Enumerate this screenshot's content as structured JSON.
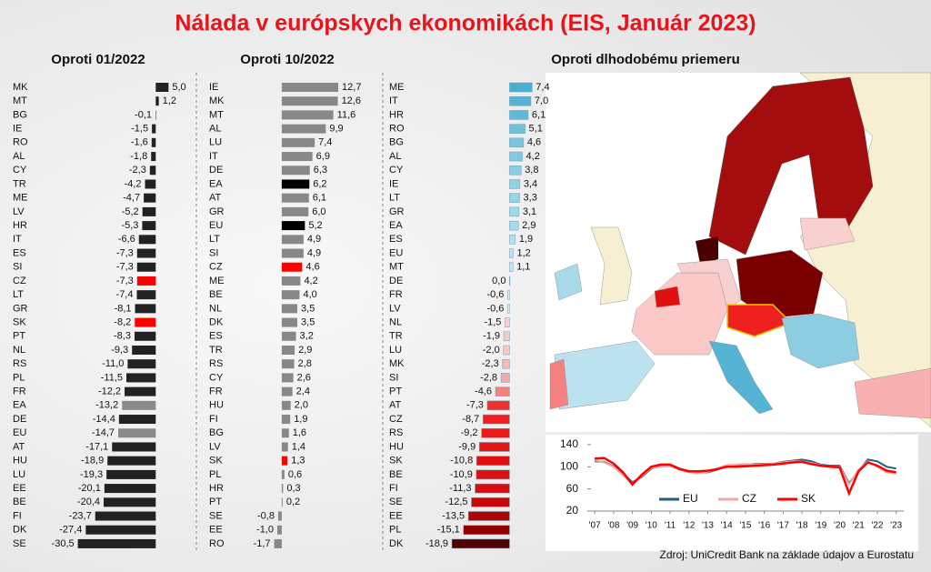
{
  "title": "Nálada v európskych ekonomikách (EIS, Január 2023)",
  "source": "Zdroj: UniCredit Bank na základe údajov a Eurostatu",
  "chart_data": [
    {
      "type": "barh",
      "title": "Oproti 01/2022",
      "xlim": [
        -35,
        12
      ],
      "categories": [
        "MK",
        "MT",
        "BG",
        "IE",
        "RO",
        "AL",
        "CY",
        "TR",
        "ME",
        "LV",
        "HR",
        "IT",
        "ES",
        "SI",
        "CZ",
        "LT",
        "GR",
        "SK",
        "PT",
        "NL",
        "RS",
        "PL",
        "FR",
        "EA",
        "DE",
        "EU",
        "AT",
        "HU",
        "LU",
        "EE",
        "BE",
        "FI",
        "DK",
        "SE"
      ],
      "values": [
        5.0,
        1.2,
        -0.1,
        -1.5,
        -1.6,
        -1.8,
        -2.3,
        -4.2,
        -4.7,
        -5.2,
        -5.3,
        -6.6,
        -7.3,
        -7.3,
        -7.3,
        -7.4,
        -8.1,
        -8.2,
        -8.3,
        -9.3,
        -11.0,
        -11.5,
        -12.2,
        -13.2,
        -14.4,
        -14.7,
        -17.1,
        -18.9,
        -19.3,
        -20.1,
        -20.4,
        -23.7,
        -27.4,
        -30.5
      ],
      "value_labels": [
        "5,0",
        "1,2",
        "-0,1",
        "-1,5",
        "-1,6",
        "-1,8",
        "-2,3",
        "-4,2",
        "-4,7",
        "-5,2",
        "-5,3",
        "-6,6",
        "-7,3",
        "-7,3",
        "-7,3",
        "-7,4",
        "-8,1",
        "-8,2",
        "-8,3",
        "-9,3",
        "-11,0",
        "-11,5",
        "-12,2",
        "-13,2",
        "-14,4",
        "-14,7",
        "-17,1",
        "-18,9",
        "-19,3",
        "-20,1",
        "-20,4",
        "-23,7",
        "-27,4",
        "-30,5"
      ],
      "colors": [
        "#222222",
        "#222222",
        "#222222",
        "#222222",
        "#222222",
        "#222222",
        "#222222",
        "#222222",
        "#222222",
        "#222222",
        "#222222",
        "#222222",
        "#222222",
        "#222222",
        "#ff0000",
        "#222222",
        "#222222",
        "#ff0000",
        "#222222",
        "#222222",
        "#222222",
        "#222222",
        "#222222",
        "#8a8a8a",
        "#222222",
        "#8a8a8a",
        "#222222",
        "#222222",
        "#222222",
        "#222222",
        "#222222",
        "#222222",
        "#222222",
        "#222222"
      ]
    },
    {
      "type": "barh",
      "title": "Oproti 10/2022",
      "xlim": [
        -20,
        18
      ],
      "categories": [
        "IE",
        "MK",
        "MT",
        "AL",
        "LU",
        "IT",
        "DE",
        "EA",
        "AT",
        "GR",
        "EU",
        "LT",
        "SI",
        "CZ",
        "ME",
        "BE",
        "NL",
        "DK",
        "ES",
        "TR",
        "RS",
        "CY",
        "FR",
        "HU",
        "FI",
        "BG",
        "LV",
        "SK",
        "PL",
        "HR",
        "PT",
        "SE",
        "EE",
        "RO"
      ],
      "values": [
        12.7,
        12.6,
        11.6,
        9.9,
        7.4,
        6.9,
        6.3,
        6.2,
        6.1,
        6.0,
        5.2,
        4.9,
        4.9,
        4.6,
        4.2,
        4.0,
        3.5,
        3.5,
        3.2,
        2.9,
        2.8,
        2.6,
        2.4,
        2.0,
        1.9,
        1.6,
        1.4,
        1.3,
        0.6,
        0.3,
        0.2,
        -0.8,
        -1.0,
        -1.7
      ],
      "value_labels": [
        "12,7",
        "12,6",
        "11,6",
        "9,9",
        "7,4",
        "6,9",
        "6,3",
        "6,2",
        "6,1",
        "6,0",
        "5,2",
        "4,9",
        "4,9",
        "4,6",
        "4,2",
        "4,0",
        "3,5",
        "3,5",
        "3,2",
        "2,9",
        "2,8",
        "2,6",
        "2,4",
        "2,0",
        "1,9",
        "1,6",
        "1,4",
        "1,3",
        "0,6",
        "0,3",
        "0,2",
        "-0,8",
        "-1,0",
        "-1,7"
      ],
      "colors": [
        "#888888",
        "#888888",
        "#888888",
        "#888888",
        "#888888",
        "#888888",
        "#888888",
        "#000000",
        "#888888",
        "#888888",
        "#000000",
        "#888888",
        "#888888",
        "#ff0000",
        "#888888",
        "#888888",
        "#888888",
        "#888888",
        "#888888",
        "#888888",
        "#888888",
        "#888888",
        "#888888",
        "#888888",
        "#888888",
        "#888888",
        "#888888",
        "#ff0000",
        "#888888",
        "#888888",
        "#888888",
        "#888888",
        "#888888",
        "#888888"
      ]
    },
    {
      "type": "barh",
      "title": "Oproti dlhodobému priemeru",
      "xlim": [
        -35,
        10
      ],
      "categories": [
        "ME",
        "IT",
        "HR",
        "RO",
        "BG",
        "AL",
        "CY",
        "IE",
        "LT",
        "GR",
        "EA",
        "ES",
        "EU",
        "MT",
        "DE",
        "FR",
        "LV",
        "NL",
        "TR",
        "LU",
        "MK",
        "SI",
        "PT",
        "AT",
        "CZ",
        "RS",
        "HU",
        "SK",
        "BE",
        "FI",
        "SE",
        "EE",
        "PL",
        "DK"
      ],
      "values": [
        7.4,
        7.0,
        6.1,
        5.1,
        4.6,
        4.2,
        3.8,
        3.4,
        3.3,
        3.1,
        2.9,
        1.9,
        1.2,
        1.1,
        0.0,
        -0.6,
        -0.6,
        -1.5,
        -1.9,
        -2.0,
        -2.3,
        -2.8,
        -4.6,
        -7.3,
        -8.7,
        -9.2,
        -9.9,
        -10.8,
        -10.9,
        -11.3,
        -12.5,
        -13.5,
        -15.1,
        -18.9
      ],
      "value_labels": [
        "7,4",
        "7,0",
        "6,1",
        "5,1",
        "4,6",
        "4,2",
        "3,8",
        "3,4",
        "3,3",
        "3,1",
        "2,9",
        "1,9",
        "1,2",
        "1,1",
        "0,0",
        "-0,6",
        "-0,6",
        "-1,5",
        "-1,9",
        "-2,0",
        "-2,3",
        "-2,8",
        "-4,6",
        "-7,3",
        "-8,7",
        "-9,2",
        "-9,9",
        "-10,8",
        "-10,9",
        "-11,3",
        "-12,5",
        "-13,5",
        "-15,1",
        "-18,9"
      ],
      "colors": [
        "#4aaed0",
        "#55b3d3",
        "#62b9d7",
        "#70c0da",
        "#7cc5dd",
        "#84c9e0",
        "#8ccde2",
        "#95d1e4",
        "#9bd3e6",
        "#a2d7e8",
        "#a8d9e9",
        "#b4dfed",
        "#bce2ef",
        "#c4e6f1",
        "#ffffff",
        "#fde0e0",
        "#fde0e0",
        "#fcd0d0",
        "#fbc8c8",
        "#fbc6c6",
        "#fab8b8",
        "#f8a8a8",
        "#f48080",
        "#f03030",
        "#ee2020",
        "#ea1a1a",
        "#e51515",
        "#e01010",
        "#dd1010",
        "#d80c0c",
        "#c80808",
        "#b00404",
        "#900000",
        "#500000"
      ]
    },
    {
      "type": "line",
      "xlim": [
        2006.8,
        2023.4
      ],
      "ylim": [
        20,
        140
      ],
      "yticks": [
        20,
        60,
        100,
        140
      ],
      "xticks": [
        {
          "value": 2007,
          "label": "'07"
        },
        {
          "value": 2008,
          "label": "'08"
        },
        {
          "value": 2009,
          "label": "'09"
        },
        {
          "value": 2010,
          "label": "'10"
        },
        {
          "value": 2011,
          "label": "'11"
        },
        {
          "value": 2012,
          "label": "'12"
        },
        {
          "value": 2013,
          "label": "'13"
        },
        {
          "value": 2014,
          "label": "'14"
        },
        {
          "value": 2015,
          "label": "'15"
        },
        {
          "value": 2016,
          "label": "'16"
        },
        {
          "value": 2017,
          "label": "'17"
        },
        {
          "value": 2018,
          "label": "'18"
        },
        {
          "value": 2019,
          "label": "'19"
        },
        {
          "value": 2020,
          "label": "'20"
        },
        {
          "value": 2021,
          "label": "'21"
        },
        {
          "value": 2022,
          "label": "'22"
        },
        {
          "value": 2023,
          "label": "'23"
        }
      ],
      "x": [
        2007,
        2007.5,
        2008,
        2008.5,
        2009,
        2009.5,
        2010,
        2010.5,
        2011,
        2011.5,
        2012,
        2012.5,
        2013,
        2013.5,
        2014,
        2014.5,
        2015,
        2015.5,
        2016,
        2016.5,
        2017,
        2017.5,
        2018,
        2018.5,
        2019,
        2019.5,
        2020,
        2020.5,
        2021,
        2021.5,
        2022,
        2022.5,
        2023
      ],
      "series": [
        {
          "name": "EU",
          "color": "#1f5f7a",
          "values": [
            110,
            109,
            101,
            88,
            72,
            82,
            97,
            102,
            104,
            97,
            92,
            89,
            90,
            95,
            101,
            102,
            104,
            105,
            105,
            106,
            109,
            111,
            113,
            110,
            104,
            102,
            102,
            70,
            93,
            113,
            110,
            100,
            97
          ]
        },
        {
          "name": "CZ",
          "color": "#f4a6a6",
          "values": [
            112,
            108,
            100,
            85,
            70,
            84,
            98,
            100,
            101,
            95,
            90,
            88,
            91,
            97,
            103,
            104,
            105,
            104,
            104,
            106,
            108,
            110,
            110,
            107,
            103,
            100,
            100,
            68,
            95,
            110,
            100,
            90,
            88
          ]
        },
        {
          "name": "SK",
          "color": "#ff0000",
          "values": [
            115,
            116,
            106,
            90,
            68,
            86,
            100,
            104,
            104,
            96,
            92,
            92,
            93,
            96,
            100,
            100,
            101,
            102,
            103,
            104,
            106,
            108,
            109,
            105,
            102,
            100,
            99,
            52,
            92,
            108,
            102,
            93,
            90
          ]
        }
      ]
    }
  ]
}
